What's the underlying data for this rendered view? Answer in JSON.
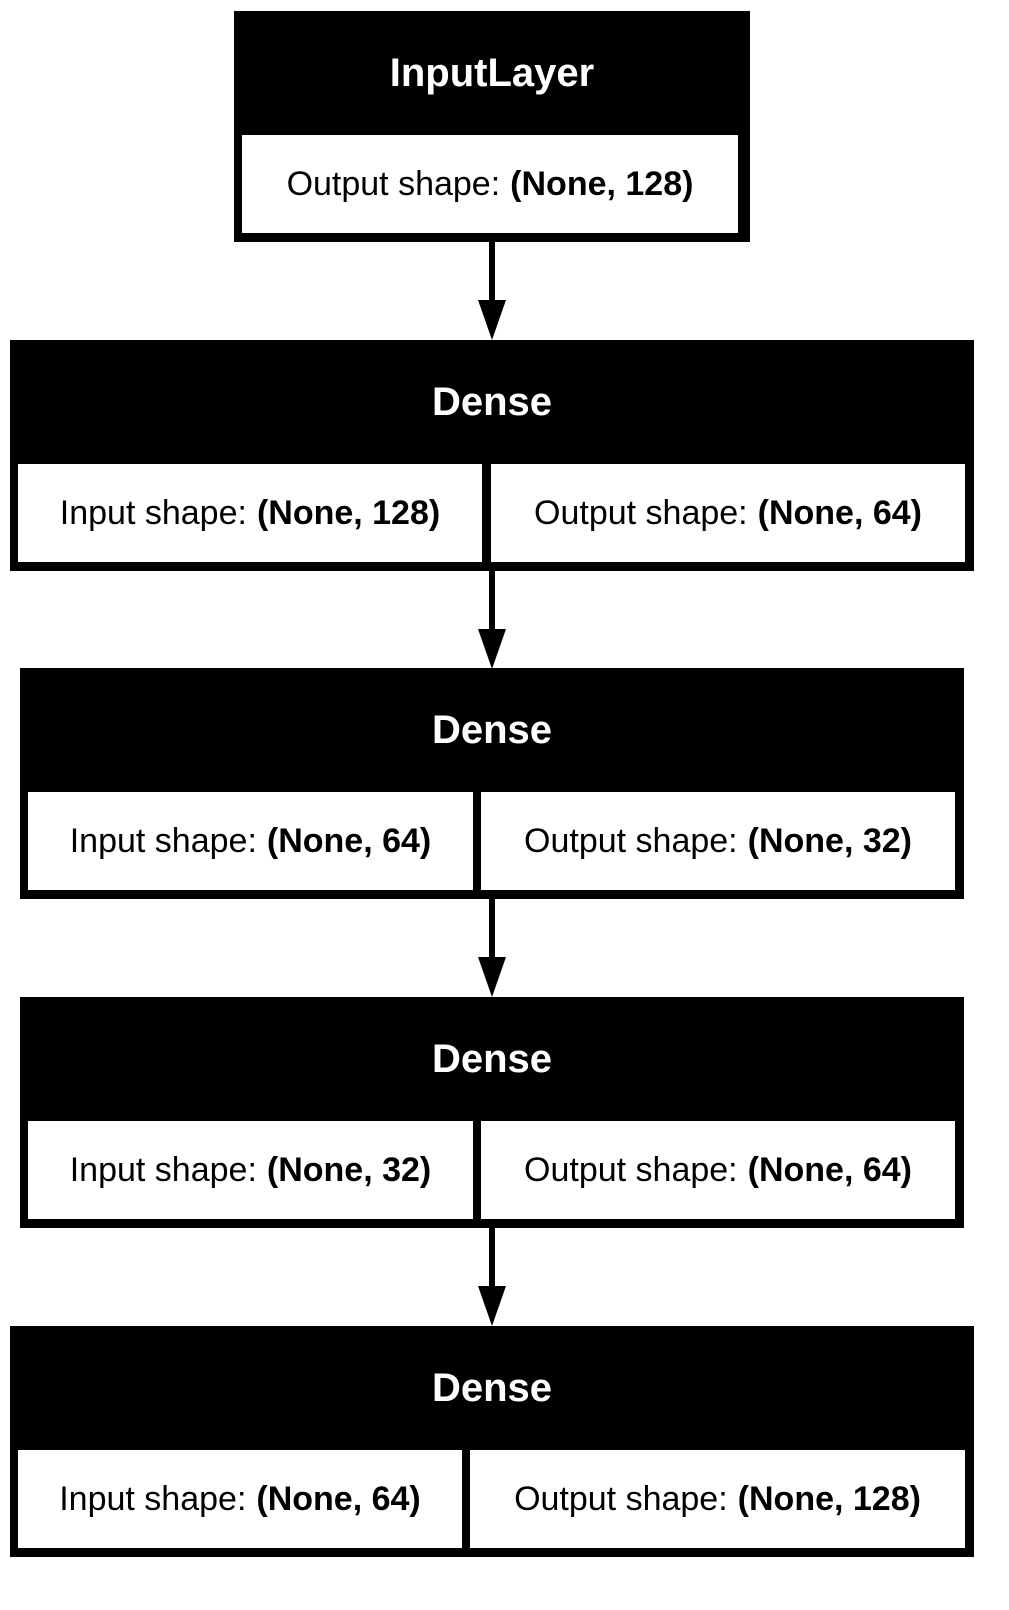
{
  "layers": [
    {
      "title": "InputLayer",
      "output_label": "Output shape:",
      "output_value": "(None, 128)"
    },
    {
      "title": "Dense",
      "input_label": "Input shape:",
      "input_value": "(None, 128)",
      "output_label": "Output shape:",
      "output_value": "(None, 64)"
    },
    {
      "title": "Dense",
      "input_label": "Input shape:",
      "input_value": "(None, 64)",
      "output_label": "Output shape:",
      "output_value": "(None, 32)"
    },
    {
      "title": "Dense",
      "input_label": "Input shape:",
      "input_value": "(None, 32)",
      "output_label": "Output shape:",
      "output_value": "(None, 64)"
    },
    {
      "title": "Dense",
      "input_label": "Input shape:",
      "input_value": "(None, 64)",
      "output_label": "Output shape:",
      "output_value": "(None, 128)"
    }
  ]
}
